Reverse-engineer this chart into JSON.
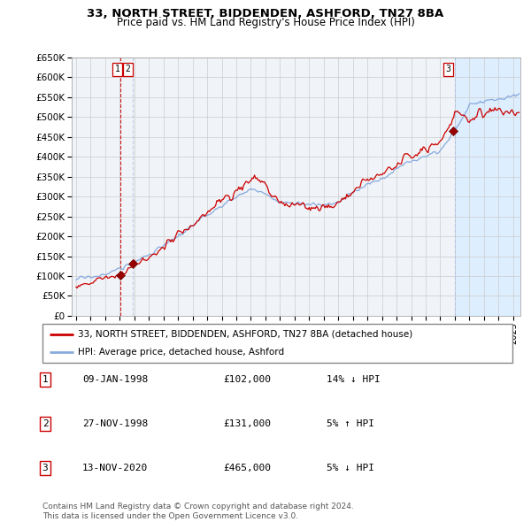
{
  "title": "33, NORTH STREET, BIDDENDEN, ASHFORD, TN27 8BA",
  "subtitle": "Price paid vs. HM Land Registry's House Price Index (HPI)",
  "ylim": [
    0,
    650000
  ],
  "xlim_start": 1994.7,
  "xlim_end": 2025.5,
  "yticks": [
    0,
    50000,
    100000,
    150000,
    200000,
    250000,
    300000,
    350000,
    400000,
    450000,
    500000,
    550000,
    600000,
    650000
  ],
  "ytick_labels": [
    "£0",
    "£50K",
    "£100K",
    "£150K",
    "£200K",
    "£250K",
    "£300K",
    "£350K",
    "£400K",
    "£450K",
    "£500K",
    "£550K",
    "£600K",
    "£650K"
  ],
  "xticks": [
    1995,
    1996,
    1997,
    1998,
    1999,
    2000,
    2001,
    2002,
    2003,
    2004,
    2005,
    2006,
    2007,
    2008,
    2009,
    2010,
    2011,
    2012,
    2013,
    2014,
    2015,
    2016,
    2017,
    2018,
    2019,
    2020,
    2021,
    2022,
    2023,
    2024,
    2025
  ],
  "legend_line1": "33, NORTH STREET, BIDDENDEN, ASHFORD, TN27 8BA (detached house)",
  "legend_line2": "HPI: Average price, detached house, Ashford",
  "transactions": [
    {
      "num": "1",
      "date": "09-JAN-1998",
      "price": "£102,000",
      "hpi": "14% ↓ HPI",
      "year": 1998.03,
      "value": 102000
    },
    {
      "num": "2",
      "date": "27-NOV-1998",
      "price": "£131,000",
      "hpi": "5% ↑ HPI",
      "year": 1998.92,
      "value": 131000
    },
    {
      "num": "3",
      "date": "13-NOV-2020",
      "price": "£465,000",
      "hpi": "5% ↓ HPI",
      "year": 2020.87,
      "value": 465000
    }
  ],
  "copyright": "Contains HM Land Registry data © Crown copyright and database right 2024.\nThis data is licensed under the Open Government Licence v3.0.",
  "line_color_red": "#cc0000",
  "line_color_blue": "#88aadd",
  "marker_color_red": "#990000",
  "bg_color": "#f0f4f8",
  "highlight_bg": "#ddeeff",
  "grid_color": "#cccccc",
  "vline_color_red": "#cc0000",
  "vline_color_blue": "#aabbdd"
}
